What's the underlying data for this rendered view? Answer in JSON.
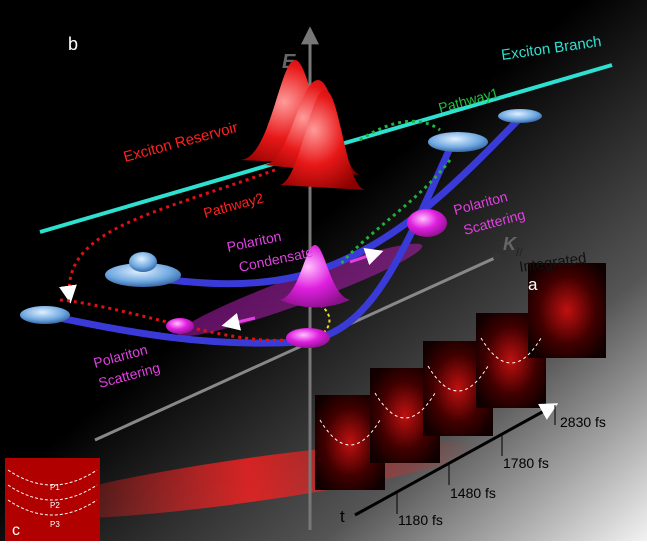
{
  "panels": {
    "b": "b",
    "a": "a",
    "c": "c"
  },
  "axes": {
    "energy": "E",
    "momentum": "K",
    "momentum_subscript": "//",
    "time": "t"
  },
  "labels": {
    "exciton_branch": "Exciton Branch",
    "exciton_reservoir": "Exciton Reservoir",
    "pathway1": "Pathway1",
    "pathway2": "Pathway2",
    "scattering_right": [
      "Polariton",
      "Scattering"
    ],
    "condensate": [
      "Polariton",
      "Condensate"
    ],
    "scattering_left": [
      "Polariton",
      "Scattering"
    ]
  },
  "frames": {
    "integrated": "Integrated",
    "times": [
      "1180 fs",
      "1480 fs",
      "1780 fs",
      "2830 fs"
    ]
  },
  "inset": {
    "labels": [
      "P1",
      "P2",
      "P3"
    ]
  }
}
